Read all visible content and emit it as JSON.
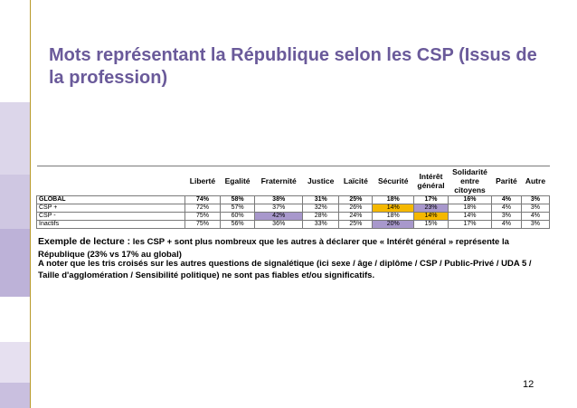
{
  "slide": {
    "title": "Mots représentant la République selon les CSP (Issus de la profession)",
    "page_number": "12",
    "colors": {
      "title": "#6a5a9a",
      "sidebar": [
        "#ffffff",
        "#dcd6ea",
        "#cfc7e2",
        "#bdb2d8",
        "#ffffff",
        "#e6e0f0",
        "#c9bfdf"
      ],
      "highlight_orange": "#f5b800",
      "highlight_purple": "#a898cc",
      "rule": "#b89a2a"
    }
  },
  "table": {
    "columns": [
      "Liberté",
      "Egalité",
      "Fraternité",
      "Justice",
      "Laïcité",
      "Sécurité",
      "Intérêt général",
      "Solidarité entre citoyens",
      "Parité",
      "Autre"
    ],
    "rows": [
      {
        "label": "GLOBAL",
        "bold": true,
        "cells": [
          "74%",
          "58%",
          "38%",
          "31%",
          "25%",
          "18%",
          "17%",
          "16%",
          "4%",
          "3%"
        ],
        "hl": [
          null,
          null,
          null,
          null,
          null,
          null,
          null,
          null,
          null,
          null
        ]
      },
      {
        "label": "CSP +",
        "bold": false,
        "cells": [
          "72%",
          "57%",
          "37%",
          "32%",
          "26%",
          "14%",
          "23%",
          "18%",
          "4%",
          "3%"
        ],
        "hl": [
          null,
          null,
          null,
          null,
          null,
          "orange",
          "purple",
          null,
          null,
          null
        ]
      },
      {
        "label": "CSP -",
        "bold": false,
        "cells": [
          "75%",
          "60%",
          "42%",
          "28%",
          "24%",
          "18%",
          "14%",
          "14%",
          "3%",
          "4%"
        ],
        "hl": [
          null,
          null,
          "purple",
          null,
          null,
          null,
          "orange",
          null,
          null,
          null
        ]
      },
      {
        "label": "Inactifs",
        "bold": false,
        "cells": [
          "75%",
          "56%",
          "36%",
          "33%",
          "25%",
          "20%",
          "15%",
          "17%",
          "4%",
          "3%"
        ],
        "hl": [
          null,
          null,
          null,
          null,
          null,
          "purple",
          null,
          null,
          null,
          null
        ]
      }
    ]
  },
  "note": {
    "lead": "Exemple de lecture :",
    "text": "les CSP + sont plus nombreux que les autres à déclarer que « Intérêt général » représente la République (23% vs 17% au global)"
  },
  "disclaimer": "A noter que les tris croisés sur les autres questions de signalétique (ici sexe / âge / diplôme / CSP / Public-Privé / UDA 5 / Taille d'agglomération / Sensibilité politique) ne sont pas fiables et/ou significatifs."
}
